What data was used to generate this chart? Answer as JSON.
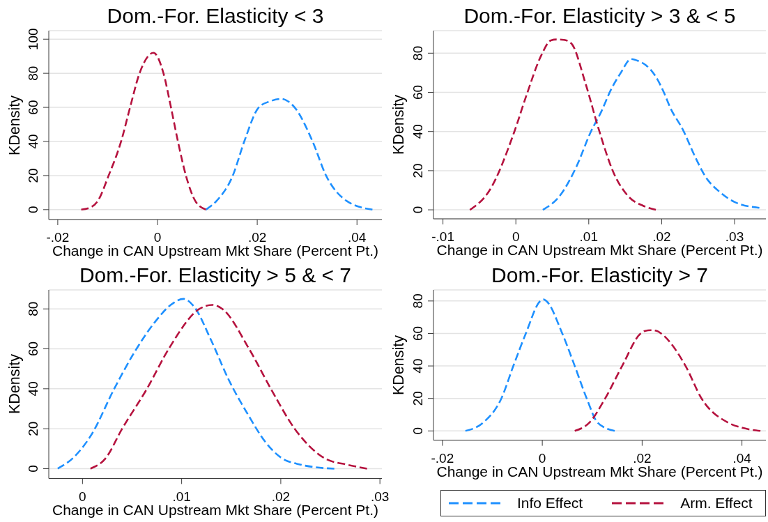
{
  "chart_data": [
    {
      "type": "line",
      "title": "Dom.-For. Elasticity < 3",
      "xlabel": "Change in CAN Upstream Mkt Share (Percent Pt.)",
      "ylabel": "KDensity",
      "xlim": [
        -0.0218,
        0.045
      ],
      "ylim": [
        -5.8,
        105
      ],
      "xticks": [
        {
          "value": -0.02,
          "label": "-.02"
        },
        {
          "value": 0,
          "label": "0"
        },
        {
          "value": 0.02,
          "label": ".02"
        },
        {
          "value": 0.04,
          "label": ".04"
        }
      ],
      "yticks": [
        0,
        20,
        40,
        60,
        80,
        100
      ],
      "grid": "y",
      "line_style": "dashed",
      "series": [
        {
          "color": "#1e90ff",
          "x": [
            0.0097,
            0.0118,
            0.0151,
            0.0174,
            0.0203,
            0.0225,
            0.0248,
            0.0262,
            0.0275,
            0.0311,
            0.0338,
            0.038,
            0.0431
          ],
          "values": [
            0,
            5,
            20,
            40,
            60,
            63.5,
            65,
            63.5,
            60,
            40,
            20,
            5,
            0
          ]
        },
        {
          "color": "#b5123e",
          "x": [
            -0.0153,
            -0.0132,
            -0.012,
            -0.0098,
            -0.0073,
            -0.0055,
            -0.0036,
            -0.0008,
            0.0012,
            0.0027,
            0.0041,
            0.0057,
            0.0076,
            0.0097
          ],
          "values": [
            0,
            1.7,
            5,
            20,
            40,
            60,
            80,
            92,
            80,
            60,
            40,
            20,
            5,
            0
          ]
        }
      ]
    },
    {
      "type": "line",
      "title": "Dom.-For. Elasticity > 3 & < 5",
      "xlabel": "Change in CAN Upstream Mkt Share (Percent Pt.)",
      "ylabel": "KDensity",
      "xlim": [
        -0.0113,
        0.0343
      ],
      "ylim": [
        -4.6,
        91.5
      ],
      "xticks": [
        {
          "value": -0.01,
          "label": "-.01"
        },
        {
          "value": 0,
          "label": "0"
        },
        {
          "value": 0.01,
          "label": ".01"
        },
        {
          "value": 0.02,
          "label": ".02"
        },
        {
          "value": 0.03,
          "label": ".03"
        }
      ],
      "yticks": [
        0,
        20,
        40,
        60,
        80
      ],
      "grid": "y",
      "line_style": "dashed",
      "series": [
        {
          "color": "#1e90ff",
          "x": [
            0.0037,
            0.0062,
            0.0083,
            0.0103,
            0.0117,
            0.013,
            0.0144,
            0.0158,
            0.0168,
            0.0178,
            0.0192,
            0.0203,
            0.0212,
            0.0229,
            0.0246,
            0.026,
            0.028,
            0.03,
            0.0334
          ],
          "values": [
            0,
            8,
            22,
            40,
            50,
            61,
            70,
            77,
            76,
            74,
            68,
            60,
            52,
            41,
            27,
            17,
            9,
            4,
            1
          ]
        },
        {
          "color": "#b5123e",
          "x": [
            -0.0063,
            -0.0036,
            -0.0002,
            0.0015,
            0.0035,
            0.0048,
            0.0056,
            0.0066,
            0.0076,
            0.0096,
            0.0113,
            0.0134,
            0.0154,
            0.0175,
            0.0192
          ],
          "values": [
            0,
            10,
            40,
            59,
            79,
            86.5,
            87,
            86.8,
            85,
            64,
            42,
            19,
            7,
            2,
            0
          ]
        }
      ]
    },
    {
      "type": "line",
      "title": "Dom.-For. Elasticity > 5 & < 7",
      "xlabel": "Change in CAN Upstream Mkt Share (Percent Pt.)",
      "ylabel": "KDensity",
      "xlim": [
        -0.0034,
        0.0302
      ],
      "ylim": [
        -4.9,
        89.5
      ],
      "xticks": [
        {
          "value": 0,
          "label": "0"
        },
        {
          "value": 0.01,
          "label": ".01"
        },
        {
          "value": 0.02,
          "label": ".02"
        },
        {
          "value": 0.03,
          "label": ".03"
        }
      ],
      "yticks": [
        0,
        20,
        40,
        60,
        80
      ],
      "grid": "y",
      "line_style": "dashed",
      "series": [
        {
          "color": "#1e90ff",
          "x": [
            -0.0025,
            -0.0009,
            0.0009,
            0.0032,
            0.0052,
            0.0074,
            0.0089,
            0.0102,
            0.0112,
            0.013,
            0.0147,
            0.0167,
            0.0185,
            0.02,
            0.022,
            0.0235,
            0.0254
          ],
          "values": [
            0,
            5.6,
            17,
            40,
            58,
            74,
            82,
            85,
            81.5,
            64,
            45,
            27,
            13,
            5.6,
            2,
            0.7,
            0
          ]
        },
        {
          "color": "#b5123e",
          "x": [
            0.0008,
            0.0023,
            0.004,
            0.0065,
            0.0087,
            0.0118,
            0.0131,
            0.0141,
            0.0168,
            0.019,
            0.0214,
            0.0245,
            0.0267,
            0.0287
          ],
          "values": [
            0,
            5,
            20,
            40,
            60,
            80,
            82,
            80,
            60,
            40,
            20,
            5,
            2,
            0
          ]
        }
      ]
    },
    {
      "type": "line",
      "title": "Dom.-For. Elasticity > 7",
      "xlabel": "Change in CAN Upstream Mkt Share (Percent Pt.)",
      "ylabel": "KDensity",
      "xlim": [
        -0.0218,
        0.0448
      ],
      "ylim": [
        -5.7,
        86.8
      ],
      "xticks": [
        {
          "value": -0.02,
          "label": "-.02"
        },
        {
          "value": 0,
          "label": "0"
        },
        {
          "value": 0.02,
          "label": ".02"
        },
        {
          "value": 0.04,
          "label": ".04"
        }
      ],
      "yticks": [
        0,
        20,
        40,
        60,
        80
      ],
      "grid": "y",
      "line_style": "dashed",
      "legend": "bottom",
      "series": [
        {
          "name": "Info Effect",
          "color": "#1e90ff",
          "x": [
            -0.0154,
            -0.0119,
            -0.0082,
            -0.0058,
            -0.0033,
            -0.0004,
            0.0002,
            0.0008,
            0.004,
            0.0065,
            0.0089,
            0.0111,
            0.0145
          ],
          "values": [
            0,
            5,
            20,
            40,
            60,
            80,
            81,
            80,
            60,
            40,
            20,
            5,
            0
          ]
        },
        {
          "name": "Arm. Effect",
          "color": "#b5123e",
          "x": [
            0.0065,
            0.0094,
            0.0126,
            0.016,
            0.0197,
            0.0205,
            0.0219,
            0.023,
            0.0238,
            0.0287,
            0.0319,
            0.0373,
            0.0402,
            0.0437
          ],
          "values": [
            0,
            5,
            20,
            40,
            60,
            61.5,
            62,
            61.5,
            60,
            40,
            20,
            5,
            1.8,
            0
          ]
        }
      ]
    }
  ]
}
